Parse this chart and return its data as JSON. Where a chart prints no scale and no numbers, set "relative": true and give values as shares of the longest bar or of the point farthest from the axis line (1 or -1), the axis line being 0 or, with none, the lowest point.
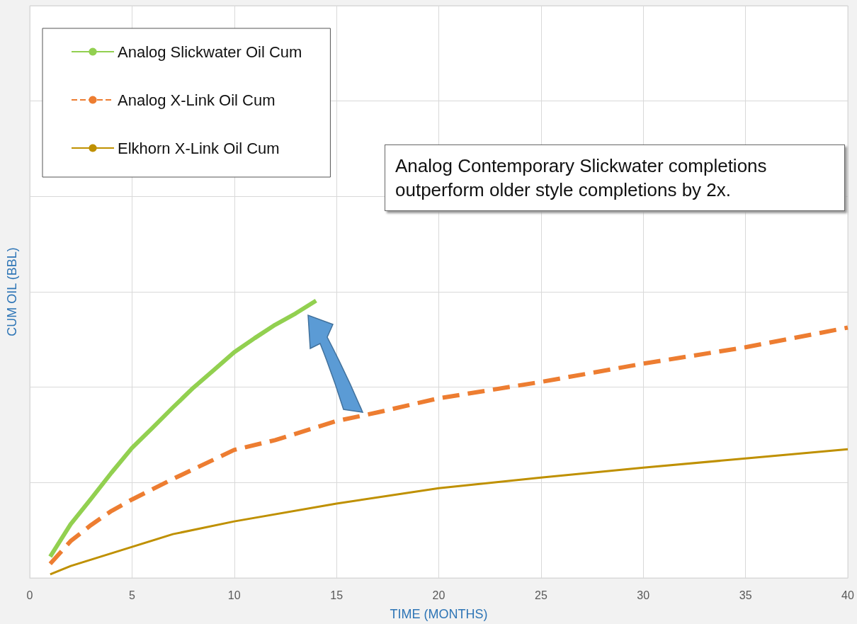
{
  "chart_data": {
    "type": "line",
    "relative": true,
    "xlabel": "TIME (MONTHS)",
    "ylabel": "CUM OIL (BBL)",
    "xlim": [
      0,
      40
    ],
    "xticks": [
      0,
      5,
      10,
      15,
      20,
      25,
      30,
      35,
      40
    ],
    "grid": true,
    "legend": "top left",
    "marker": "none",
    "annotations": [
      "Analog Contemporary Slickwater completions outperform older style completions by 2x."
    ],
    "series": [
      {
        "name": "Analog Slickwater Oil Cum",
        "color": "#92d050",
        "line_style": "solid",
        "x": [
          1,
          2,
          3,
          4,
          5,
          6,
          7,
          8,
          9,
          10,
          11,
          12,
          13,
          14
        ],
        "values": [
          0.077,
          0.194,
          0.286,
          0.38,
          0.469,
          0.541,
          0.615,
          0.686,
          0.75,
          0.814,
          0.865,
          0.913,
          0.954,
          1.0
        ]
      },
      {
        "name": "Analog X-Link Oil Cum",
        "color": "#ed7d31",
        "line_style": "dashed",
        "x": [
          1,
          2,
          3,
          4,
          5,
          7,
          10,
          12,
          15,
          17,
          20,
          25,
          30,
          35,
          40
        ],
        "values": [
          0.051,
          0.133,
          0.191,
          0.242,
          0.283,
          0.357,
          0.462,
          0.497,
          0.566,
          0.597,
          0.648,
          0.707,
          0.773,
          0.832,
          0.903
        ]
      },
      {
        "name": "Elkhorn X-Link Oil Cum",
        "color": "#bf9000",
        "line_style": "solid",
        "x": [
          1,
          2,
          3,
          5,
          7,
          10,
          15,
          20,
          25,
          30,
          35,
          40
        ],
        "values": [
          0.013,
          0.043,
          0.066,
          0.112,
          0.158,
          0.204,
          0.268,
          0.324,
          0.362,
          0.398,
          0.431,
          0.464
        ]
      }
    ]
  }
}
